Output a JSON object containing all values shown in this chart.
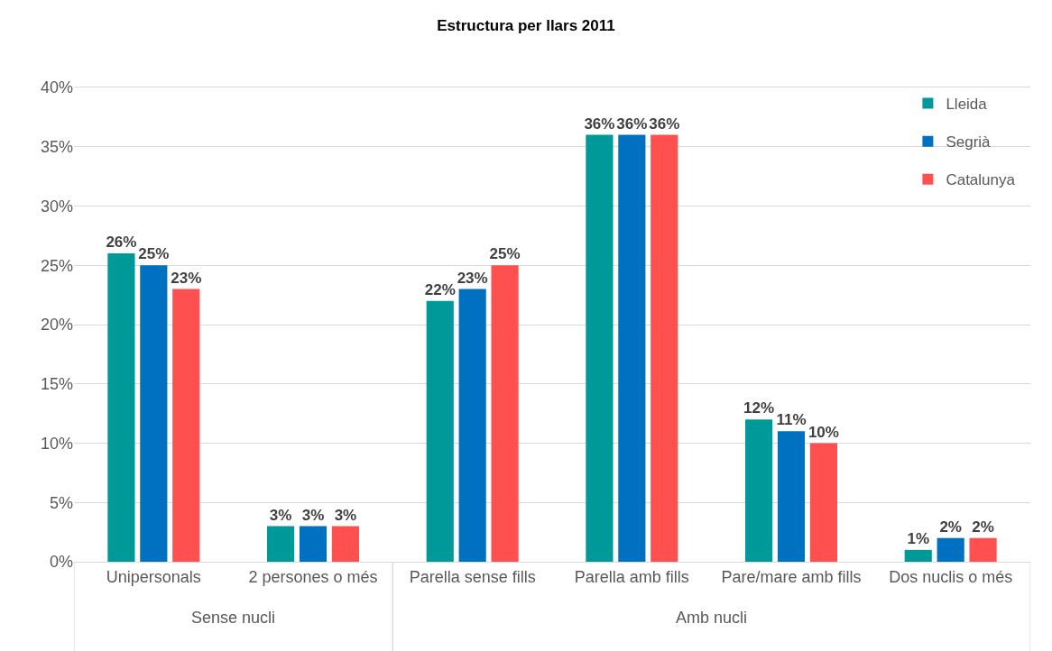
{
  "chart_data": {
    "type": "bar",
    "title": "Estructura per llars 2011",
    "categories": [
      "Unipersonals",
      "2 persones o més",
      "Parella sense fills",
      "Parella amb fills",
      "Pare/mare amb fills",
      "Dos nuclis o més"
    ],
    "series": [
      {
        "name": "Lleida",
        "color": "#009999",
        "values": [
          26,
          3,
          22,
          36,
          12,
          1
        ],
        "value_labels": [
          "26%",
          "3%",
          "22%",
          "36%",
          "12%",
          "1%"
        ]
      },
      {
        "name": "Segrià",
        "color": "#0070c0",
        "values": [
          25,
          3,
          23,
          36,
          11,
          2
        ],
        "value_labels": [
          "25%",
          "3%",
          "23%",
          "36%",
          "11%",
          "2%"
        ]
      },
      {
        "name": "Catalunya",
        "color": "#ff5050",
        "values": [
          23,
          3,
          25,
          36,
          10,
          2
        ],
        "value_labels": [
          "23%",
          "3%",
          "25%",
          "36%",
          "10%",
          "2%"
        ]
      }
    ],
    "ylim": [
      0,
      40
    ],
    "yticks": [
      {
        "value": 0,
        "label": "0%"
      },
      {
        "value": 5,
        "label": "5%"
      },
      {
        "value": 10,
        "label": "10%"
      },
      {
        "value": 15,
        "label": "15%"
      },
      {
        "value": 20,
        "label": "20%"
      },
      {
        "value": 25,
        "label": "25%"
      },
      {
        "value": 30,
        "label": "30%"
      },
      {
        "value": 35,
        "label": "35%"
      },
      {
        "value": 40,
        "label": "40%"
      }
    ],
    "annotations": [
      "Sense nucli",
      "Amb nucli"
    ],
    "grid": "y",
    "legend": "top right"
  }
}
